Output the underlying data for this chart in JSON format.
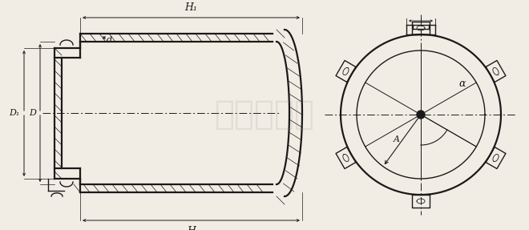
{
  "bg_color": "#f2ede4",
  "line_color": "#1a1a1a",
  "watermark_text": "城池工业炉",
  "fig_width": 6.6,
  "fig_height": 2.87,
  "dpi": 100,
  "lw_thick": 1.6,
  "lw_med": 1.0,
  "lw_thin": 0.7,
  "lw_dim": 0.7,
  "labels": {
    "H1": "H₁",
    "H": "H",
    "D": "D",
    "D1": "D₁",
    "d": "d",
    "A": "A",
    "alpha": "α"
  }
}
